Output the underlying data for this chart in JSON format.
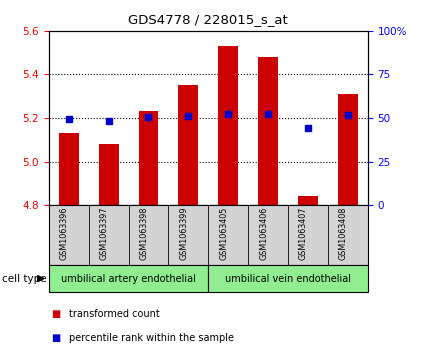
{
  "title": "GDS4778 / 228015_s_at",
  "samples": [
    "GSM1063396",
    "GSM1063397",
    "GSM1063398",
    "GSM1063399",
    "GSM1063405",
    "GSM1063406",
    "GSM1063407",
    "GSM1063408"
  ],
  "bar_values": [
    5.13,
    5.08,
    5.23,
    5.35,
    5.53,
    5.48,
    4.84,
    5.31
  ],
  "percentile_values": [
    49.5,
    48.5,
    50.5,
    51.0,
    52.0,
    52.5,
    44.0,
    51.5
  ],
  "bar_color": "#cc0000",
  "dot_color": "#0000cc",
  "ylim_left": [
    4.8,
    5.6
  ],
  "ylim_right": [
    0,
    100
  ],
  "yticks_left": [
    4.8,
    5.0,
    5.2,
    5.4,
    5.6
  ],
  "yticks_right": [
    0,
    25,
    50,
    75,
    100
  ],
  "ytick_labels_right": [
    "0",
    "25",
    "50",
    "75",
    "100%"
  ],
  "bar_bottom": 4.8,
  "group1_label": "umbilical artery endothelial",
  "group2_label": "umbilical vein endothelial",
  "group_color": "#90EE90",
  "cell_type_label": "cell type",
  "legend_red_label": "transformed count",
  "legend_blue_label": "percentile rank within the sample",
  "legend_red_color": "#cc0000",
  "legend_blue_color": "#0000cc",
  "sample_bg_color": "#d3d3d3",
  "bg_color": "#ffffff",
  "grid_linestyle": "dotted",
  "grid_linewidth": 0.8,
  "bar_width": 0.5
}
